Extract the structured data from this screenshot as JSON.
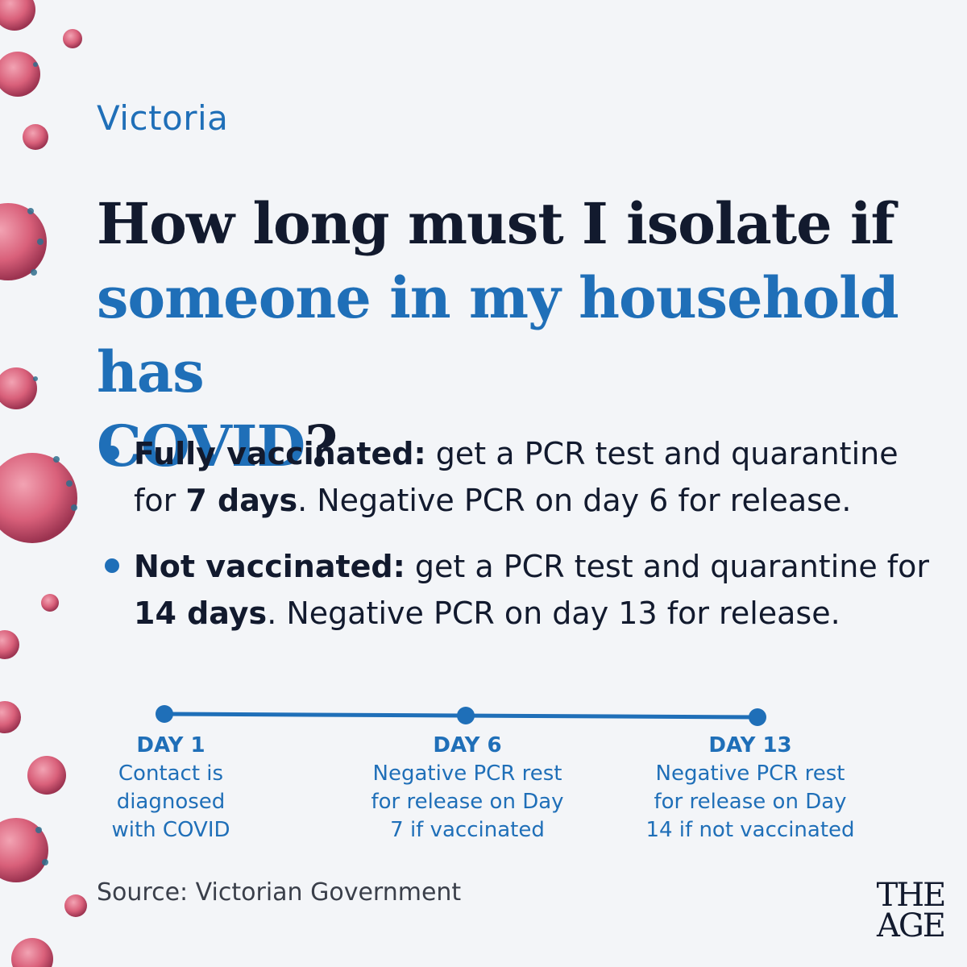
{
  "kicker": "Victoria",
  "headline": {
    "line1": "How long must I isolate if",
    "line2_highlight": "someone in my household has",
    "line3_highlight": "COVID",
    "line3_end": "?"
  },
  "bullets": [
    {
      "lead": "Fully vaccinated:",
      "text1": " get a PCR test and quarantine for ",
      "bold": "7 days",
      "text2": ". Negative PCR on day 6 for release."
    },
    {
      "lead": "Not vaccinated:",
      "text1": " get a PCR test and quarantine for ",
      "bold": "14 days",
      "text2": ". Negative PCR on day 13 for release."
    }
  ],
  "timeline": [
    {
      "day": "DAY 1",
      "line1": "Contact is",
      "line2": "diagnosed",
      "line3": "with COVID"
    },
    {
      "day": "DAY 6",
      "line1": "Negative PCR rest",
      "line2": "for release on Day",
      "line3": "7 if vaccinated"
    },
    {
      "day": "DAY 13",
      "line1": "Negative PCR rest",
      "line2": "for release on Day",
      "line3": "14 if not vaccinated"
    }
  ],
  "source": "Source: Victorian Government",
  "logo": {
    "line1": "THE",
    "line2": "AGE"
  },
  "colors": {
    "accent": "#1f6fb8",
    "text": "#121a2e",
    "background": "#f3f5f8",
    "virus": "#d9607a"
  }
}
